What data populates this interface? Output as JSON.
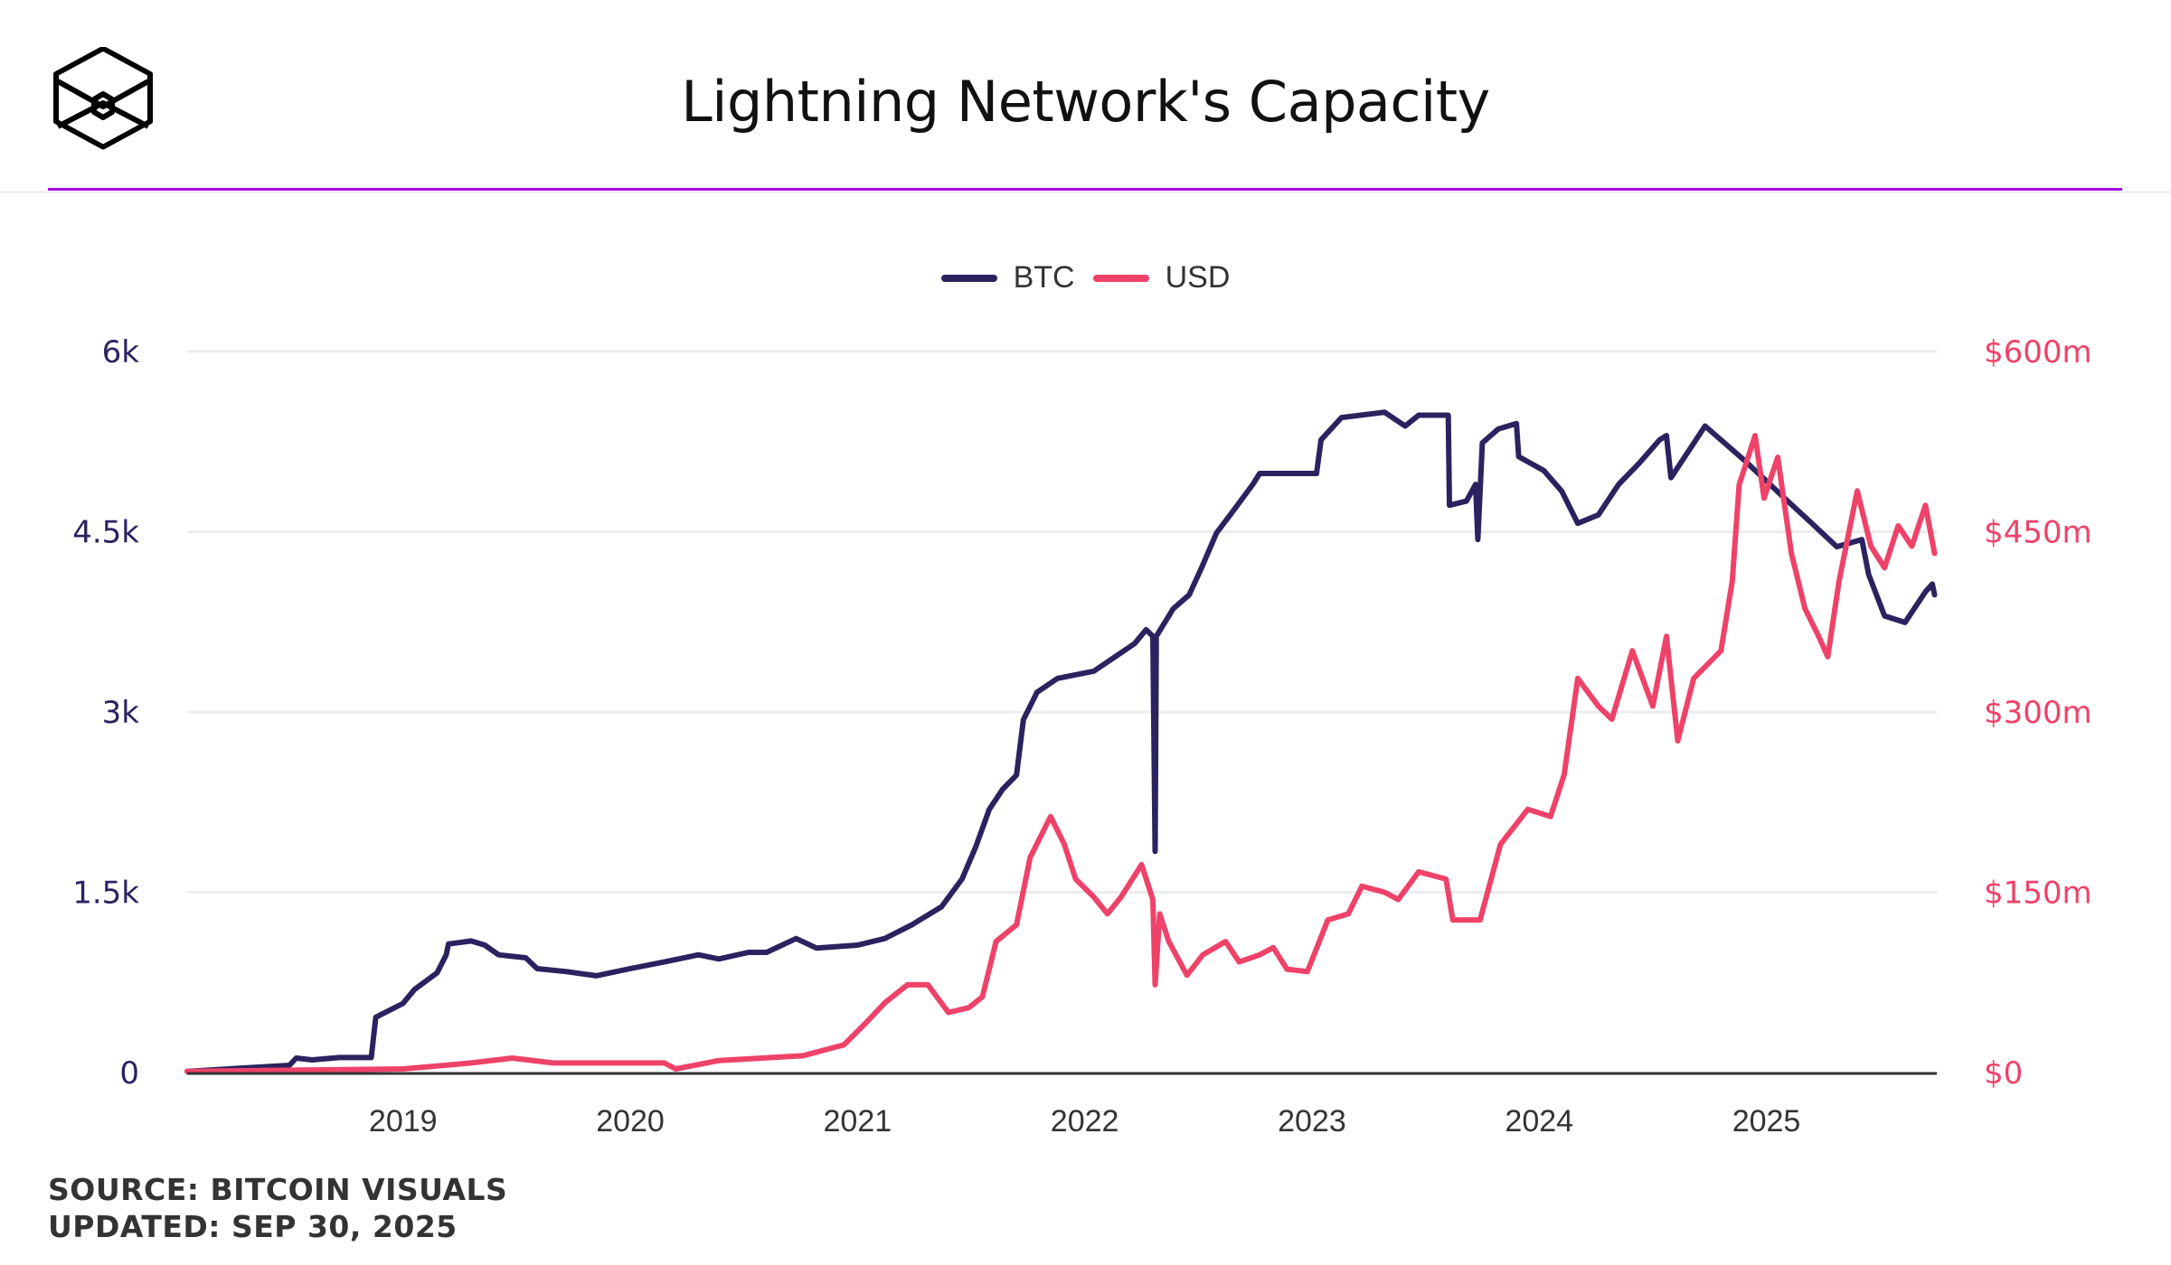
{
  "header": {
    "title": "Lightning Network's Capacity",
    "logo": "hexagonal-cube-logo"
  },
  "footer": {
    "source": "SOURCE: BITCOIN VISUALS",
    "updated": "UPDATED: SEP 30, 2025"
  },
  "colors": {
    "btc": "#2a2360",
    "usd": "#ef4269",
    "accent_rule": "#a506e8",
    "grid": "#ececec",
    "axis": "#333333"
  },
  "chart_data": {
    "type": "line",
    "title": "Lightning Network's Capacity",
    "xlabel": "",
    "ylabel_left": "BTC",
    "ylabel_right": "USD",
    "x_range": [
      2018.05,
      2025.75
    ],
    "x_ticks": [
      {
        "value": 2019,
        "label": "2019"
      },
      {
        "value": 2020,
        "label": "2020"
      },
      {
        "value": 2021,
        "label": "2021"
      },
      {
        "value": 2022,
        "label": "2022"
      },
      {
        "value": 2023,
        "label": "2023"
      },
      {
        "value": 2024,
        "label": "2024"
      },
      {
        "value": 2025,
        "label": "2025"
      }
    ],
    "y_left": {
      "range": [
        0,
        6000
      ],
      "ticks": [
        {
          "value": 0,
          "label": "0"
        },
        {
          "value": 1500,
          "label": "1.5k"
        },
        {
          "value": 3000,
          "label": "3k"
        },
        {
          "value": 4500,
          "label": "4.5k"
        },
        {
          "value": 6000,
          "label": "6k"
        }
      ]
    },
    "y_right": {
      "range": [
        0,
        600
      ],
      "unit": "millions USD",
      "ticks": [
        {
          "value": 0,
          "label": "$0"
        },
        {
          "value": 150,
          "label": "$150m"
        },
        {
          "value": 300,
          "label": "$300m"
        },
        {
          "value": 450,
          "label": "$450m"
        },
        {
          "value": 600,
          "label": "$600m"
        }
      ]
    },
    "grid": true,
    "legend": {
      "position": "top-center",
      "entries": [
        {
          "name": "BTC",
          "color": "#2a2360"
        },
        {
          "name": "USD",
          "color": "#ef4269"
        }
      ]
    },
    "series": [
      {
        "name": "BTC",
        "axis": "left",
        "color": "#2a2360",
        "points": [
          [
            2018.05,
            10
          ],
          [
            2018.5,
            60
          ],
          [
            2018.53,
            120
          ],
          [
            2018.6,
            105
          ],
          [
            2018.72,
            125
          ],
          [
            2018.86,
            125
          ],
          [
            2018.88,
            460
          ],
          [
            2019.0,
            575
          ],
          [
            2019.05,
            690
          ],
          [
            2019.15,
            830
          ],
          [
            2019.19,
            980
          ],
          [
            2019.2,
            1070
          ],
          [
            2019.3,
            1095
          ],
          [
            2019.36,
            1060
          ],
          [
            2019.42,
            980
          ],
          [
            2019.54,
            955
          ],
          [
            2019.59,
            865
          ],
          [
            2019.72,
            840
          ],
          [
            2019.85,
            805
          ],
          [
            2020.0,
            865
          ],
          [
            2020.15,
            920
          ],
          [
            2020.3,
            980
          ],
          [
            2020.39,
            945
          ],
          [
            2020.52,
            1000
          ],
          [
            2020.6,
            1000
          ],
          [
            2020.73,
            1115
          ],
          [
            2020.82,
            1035
          ],
          [
            2021.0,
            1060
          ],
          [
            2021.12,
            1115
          ],
          [
            2021.24,
            1230
          ],
          [
            2021.37,
            1380
          ],
          [
            2021.46,
            1610
          ],
          [
            2021.52,
            1875
          ],
          [
            2021.58,
            2190
          ],
          [
            2021.64,
            2360
          ],
          [
            2021.7,
            2475
          ],
          [
            2021.73,
            2935
          ],
          [
            2021.79,
            3165
          ],
          [
            2021.88,
            3280
          ],
          [
            2022.04,
            3340
          ],
          [
            2022.13,
            3455
          ],
          [
            2022.22,
            3570
          ],
          [
            2022.27,
            3685
          ],
          [
            2022.3,
            3630
          ],
          [
            2022.31,
            1840
          ],
          [
            2022.315,
            3630
          ],
          [
            2022.39,
            3860
          ],
          [
            2022.46,
            3975
          ],
          [
            2022.52,
            4225
          ],
          [
            2022.58,
            4490
          ],
          [
            2022.65,
            4665
          ],
          [
            2022.74,
            4895
          ],
          [
            2022.77,
            4985
          ],
          [
            2023.02,
            4985
          ],
          [
            2023.04,
            5265
          ],
          [
            2023.13,
            5450
          ],
          [
            2023.32,
            5495
          ],
          [
            2023.41,
            5380
          ],
          [
            2023.47,
            5470
          ],
          [
            2023.6,
            5470
          ],
          [
            2023.605,
            4720
          ],
          [
            2023.68,
            4755
          ],
          [
            2023.72,
            4895
          ],
          [
            2023.73,
            4435
          ],
          [
            2023.75,
            5240
          ],
          [
            2023.82,
            5355
          ],
          [
            2023.9,
            5400
          ],
          [
            2023.91,
            5125
          ],
          [
            2024.02,
            5010
          ],
          [
            2024.1,
            4835
          ],
          [
            2024.17,
            4570
          ],
          [
            2024.26,
            4640
          ],
          [
            2024.35,
            4895
          ],
          [
            2024.44,
            5070
          ],
          [
            2024.53,
            5265
          ],
          [
            2024.56,
            5300
          ],
          [
            2024.58,
            4950
          ],
          [
            2024.73,
            5380
          ],
          [
            2024.9,
            5100
          ],
          [
            2025.08,
            4780
          ],
          [
            2025.2,
            4570
          ],
          [
            2025.31,
            4375
          ],
          [
            2025.42,
            4435
          ],
          [
            2025.45,
            4145
          ],
          [
            2025.52,
            3800
          ],
          [
            2025.61,
            3745
          ],
          [
            2025.7,
            4000
          ],
          [
            2025.73,
            4065
          ],
          [
            2025.74,
            3975
          ]
        ]
      },
      {
        "name": "USD",
        "axis": "right",
        "color": "#ef4269",
        "points": [
          [
            2018.05,
            1
          ],
          [
            2019.0,
            3
          ],
          [
            2019.3,
            8
          ],
          [
            2019.48,
            12
          ],
          [
            2019.66,
            8
          ],
          [
            2020.0,
            8
          ],
          [
            2020.15,
            8
          ],
          [
            2020.2,
            3
          ],
          [
            2020.39,
            10
          ],
          [
            2020.76,
            14
          ],
          [
            2020.94,
            23
          ],
          [
            2021.03,
            40
          ],
          [
            2021.12,
            58
          ],
          [
            2021.22,
            73
          ],
          [
            2021.31,
            73
          ],
          [
            2021.4,
            50
          ],
          [
            2021.49,
            54
          ],
          [
            2021.55,
            63
          ],
          [
            2021.61,
            109
          ],
          [
            2021.7,
            123
          ],
          [
            2021.76,
            179
          ],
          [
            2021.85,
            213
          ],
          [
            2021.91,
            190
          ],
          [
            2021.96,
            161
          ],
          [
            2022.04,
            146
          ],
          [
            2022.1,
            132
          ],
          [
            2022.16,
            146
          ],
          [
            2022.25,
            173
          ],
          [
            2022.3,
            144
          ],
          [
            2022.31,
            73
          ],
          [
            2022.33,
            132
          ],
          [
            2022.37,
            109
          ],
          [
            2022.45,
            81
          ],
          [
            2022.52,
            98
          ],
          [
            2022.62,
            109
          ],
          [
            2022.68,
            92
          ],
          [
            2022.77,
            98
          ],
          [
            2022.83,
            104
          ],
          [
            2022.89,
            86
          ],
          [
            2022.98,
            84
          ],
          [
            2023.07,
            127
          ],
          [
            2023.16,
            132
          ],
          [
            2023.22,
            155
          ],
          [
            2023.32,
            150
          ],
          [
            2023.38,
            144
          ],
          [
            2023.47,
            167
          ],
          [
            2023.59,
            161
          ],
          [
            2023.62,
            127
          ],
          [
            2023.74,
            127
          ],
          [
            2023.83,
            190
          ],
          [
            2023.95,
            219
          ],
          [
            2024.05,
            213
          ],
          [
            2024.11,
            248
          ],
          [
            2024.17,
            328
          ],
          [
            2024.26,
            305
          ],
          [
            2024.32,
            294
          ],
          [
            2024.41,
            351
          ],
          [
            2024.5,
            305
          ],
          [
            2024.56,
            363
          ],
          [
            2024.61,
            276
          ],
          [
            2024.68,
            328
          ],
          [
            2024.8,
            351
          ],
          [
            2024.85,
            409
          ],
          [
            2024.88,
            489
          ],
          [
            2024.95,
            530
          ],
          [
            2024.99,
            478
          ],
          [
            2025.05,
            512
          ],
          [
            2025.11,
            432
          ],
          [
            2025.17,
            386
          ],
          [
            2025.23,
            363
          ],
          [
            2025.27,
            346
          ],
          [
            2025.32,
            409
          ],
          [
            2025.4,
            484
          ],
          [
            2025.46,
            438
          ],
          [
            2025.52,
            420
          ],
          [
            2025.58,
            455
          ],
          [
            2025.64,
            438
          ],
          [
            2025.7,
            472
          ],
          [
            2025.74,
            432
          ]
        ]
      }
    ]
  }
}
